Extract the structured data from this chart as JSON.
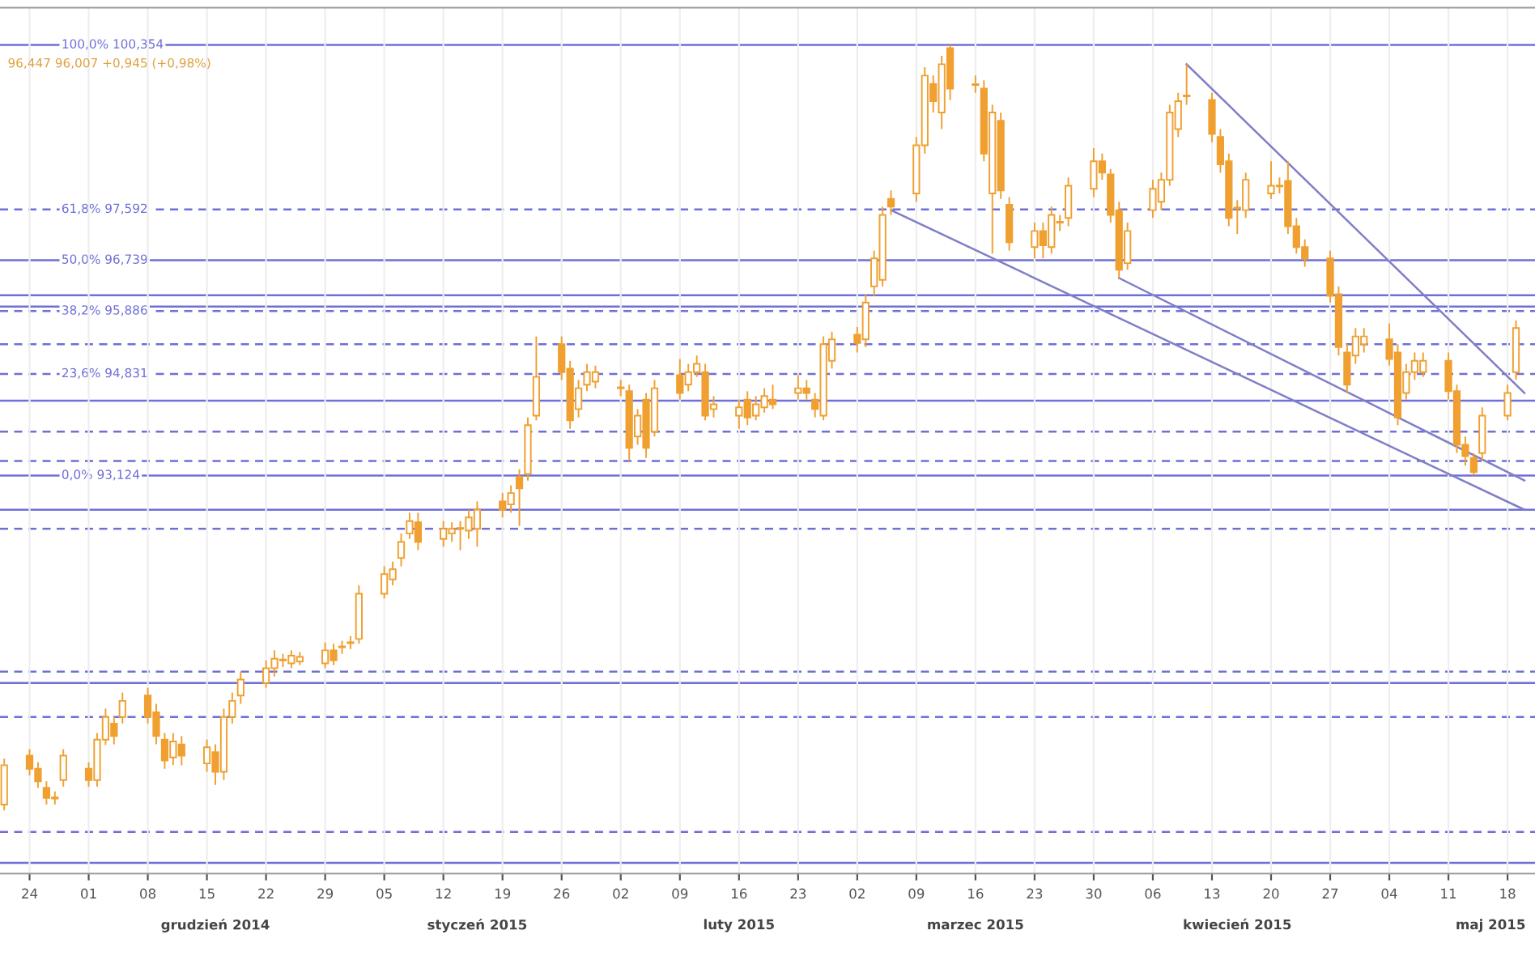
{
  "chart_data": {
    "type": "candlestick",
    "color": "#f0a030",
    "x": [
      "2014-11-21",
      "2014-11-24",
      "2014-11-25",
      "2014-11-26",
      "2014-11-27",
      "2014-11-28",
      "2014-12-01",
      "2014-12-02",
      "2014-12-03",
      "2014-12-04",
      "2014-12-05",
      "2014-12-08",
      "2014-12-09",
      "2014-12-10",
      "2014-12-11",
      "2014-12-12",
      "2014-12-15",
      "2014-12-16",
      "2014-12-17",
      "2014-12-18",
      "2014-12-19",
      "2014-12-22",
      "2014-12-23",
      "2014-12-24",
      "2014-12-25",
      "2014-12-26",
      "2014-12-29",
      "2014-12-30",
      "2014-12-31",
      "2015-01-01",
      "2015-01-02",
      "2015-01-05",
      "2015-01-06",
      "2015-01-07",
      "2015-01-08",
      "2015-01-09",
      "2015-01-12",
      "2015-01-13",
      "2015-01-14",
      "2015-01-15",
      "2015-01-16",
      "2015-01-19",
      "2015-01-20",
      "2015-01-21",
      "2015-01-22",
      "2015-01-23",
      "2015-01-26",
      "2015-01-27",
      "2015-01-28",
      "2015-01-29",
      "2015-01-30",
      "2015-02-02",
      "2015-02-03",
      "2015-02-04",
      "2015-02-05",
      "2015-02-06",
      "2015-02-09",
      "2015-02-10",
      "2015-02-11",
      "2015-02-12",
      "2015-02-13",
      "2015-02-16",
      "2015-02-17",
      "2015-02-18",
      "2015-02-19",
      "2015-02-20",
      "2015-02-23",
      "2015-02-24",
      "2015-02-25",
      "2015-02-26",
      "2015-02-27",
      "2015-03-02",
      "2015-03-03",
      "2015-03-04",
      "2015-03-05",
      "2015-03-06",
      "2015-03-09",
      "2015-03-10",
      "2015-03-11",
      "2015-03-12",
      "2015-03-13",
      "2015-03-16",
      "2015-03-17",
      "2015-03-18",
      "2015-03-19",
      "2015-03-20",
      "2015-03-23",
      "2015-03-24",
      "2015-03-25",
      "2015-03-26",
      "2015-03-27",
      "2015-03-30",
      "2015-03-31",
      "2015-04-01",
      "2015-04-02",
      "2015-04-03",
      "2015-04-06",
      "2015-04-07",
      "2015-04-08",
      "2015-04-09",
      "2015-04-10",
      "2015-04-13",
      "2015-04-14",
      "2015-04-15",
      "2015-04-16",
      "2015-04-17",
      "2015-04-20",
      "2015-04-21",
      "2015-04-22",
      "2015-04-23",
      "2015-04-24",
      "2015-04-27",
      "2015-04-28",
      "2015-04-29",
      "2015-04-30",
      "2015-05-01",
      "2015-05-04",
      "2015-05-05",
      "2015-05-06",
      "2015-05-07",
      "2015-05-08",
      "2015-05-11",
      "2015-05-12",
      "2015-05-13",
      "2015-05-14",
      "2015-05-15",
      "2015-05-18",
      "2015-05-19"
    ],
    "ohlc": [
      [
        87.6,
        88.37,
        87.5,
        88.26
      ],
      [
        88.42,
        88.53,
        88.09,
        88.2
      ],
      [
        88.2,
        88.31,
        87.88,
        87.99
      ],
      [
        87.88,
        87.99,
        87.6,
        87.71
      ],
      [
        87.72,
        87.82,
        87.6,
        87.7
      ],
      [
        88.01,
        88.53,
        87.9,
        88.42
      ],
      [
        88.2,
        88.31,
        87.9,
        88.01
      ],
      [
        88.01,
        88.8,
        87.9,
        88.69
      ],
      [
        88.69,
        89.21,
        88.6,
        89.07
      ],
      [
        88.96,
        89.07,
        88.61,
        88.75
      ],
      [
        89.07,
        89.48,
        88.96,
        89.34
      ],
      [
        89.43,
        89.56,
        88.96,
        89.07
      ],
      [
        89.15,
        89.29,
        88.61,
        88.75
      ],
      [
        88.69,
        88.8,
        88.2,
        88.34
      ],
      [
        88.39,
        88.8,
        88.26,
        88.66
      ],
      [
        88.61,
        88.75,
        88.26,
        88.42
      ],
      [
        88.29,
        88.69,
        88.15,
        88.56
      ],
      [
        88.48,
        88.61,
        87.93,
        88.15
      ],
      [
        88.15,
        89.21,
        88.01,
        89.07
      ],
      [
        89.07,
        89.48,
        88.96,
        89.34
      ],
      [
        89.43,
        89.83,
        89.29,
        89.7
      ],
      [
        89.64,
        90.02,
        89.56,
        89.89
      ],
      [
        89.89,
        90.19,
        89.75,
        90.05
      ],
      [
        90.03,
        90.13,
        89.91,
        90.02
      ],
      [
        89.97,
        90.19,
        89.89,
        90.1
      ],
      [
        90.0,
        90.16,
        89.94,
        90.08
      ],
      [
        89.97,
        90.32,
        89.89,
        90.19
      ],
      [
        90.19,
        90.3,
        89.94,
        90.02
      ],
      [
        90.25,
        90.35,
        90.13,
        90.24
      ],
      [
        90.31,
        90.43,
        90.21,
        90.32
      ],
      [
        90.38,
        91.28,
        90.3,
        91.14
      ],
      [
        91.14,
        91.6,
        91.06,
        91.47
      ],
      [
        91.38,
        91.68,
        91.28,
        91.55
      ],
      [
        91.74,
        92.15,
        91.6,
        92.01
      ],
      [
        92.15,
        92.5,
        92.06,
        92.36
      ],
      [
        92.34,
        92.5,
        91.87,
        92.01
      ],
      [
        92.06,
        92.36,
        91.93,
        92.23
      ],
      [
        92.15,
        92.34,
        92.01,
        92.23
      ],
      [
        92.24,
        92.36,
        91.87,
        92.23
      ],
      [
        92.2,
        92.55,
        92.06,
        92.42
      ],
      [
        92.23,
        92.69,
        91.93,
        92.55
      ],
      [
        92.69,
        92.83,
        92.42,
        92.55
      ],
      [
        92.64,
        92.96,
        92.5,
        92.83
      ],
      [
        93.1,
        93.23,
        92.28,
        92.91
      ],
      [
        93.15,
        94.1,
        93.04,
        93.97
      ],
      [
        94.13,
        95.46,
        94.05,
        94.78
      ],
      [
        95.33,
        95.46,
        94.73,
        94.86
      ],
      [
        94.92,
        95.05,
        93.91,
        94.05
      ],
      [
        94.24,
        94.73,
        94.1,
        94.59
      ],
      [
        94.65,
        95.0,
        94.54,
        94.86
      ],
      [
        94.7,
        94.97,
        94.59,
        94.86
      ],
      [
        94.6,
        94.73,
        94.46,
        94.59
      ],
      [
        94.54,
        94.65,
        93.37,
        93.59
      ],
      [
        93.78,
        94.24,
        93.64,
        94.13
      ],
      [
        94.4,
        94.51,
        93.42,
        93.59
      ],
      [
        93.86,
        94.73,
        93.78,
        94.59
      ],
      [
        94.81,
        95.08,
        94.4,
        94.51
      ],
      [
        94.65,
        95.0,
        94.54,
        94.86
      ],
      [
        94.86,
        95.14,
        94.78,
        95.0
      ],
      [
        94.86,
        95.0,
        94.05,
        94.13
      ],
      [
        94.24,
        94.46,
        94.1,
        94.32
      ],
      [
        94.13,
        94.4,
        93.91,
        94.27
      ],
      [
        94.4,
        94.54,
        93.97,
        94.1
      ],
      [
        94.13,
        94.46,
        94.05,
        94.32
      ],
      [
        94.27,
        94.59,
        94.18,
        94.46
      ],
      [
        94.4,
        94.65,
        94.24,
        94.32
      ],
      [
        94.51,
        94.81,
        94.4,
        94.59
      ],
      [
        94.59,
        94.73,
        94.4,
        94.51
      ],
      [
        94.4,
        94.51,
        94.1,
        94.24
      ],
      [
        94.13,
        95.46,
        94.05,
        95.33
      ],
      [
        95.05,
        95.54,
        94.92,
        95.41
      ],
      [
        95.49,
        95.62,
        95.19,
        95.35
      ],
      [
        95.41,
        96.17,
        95.28,
        96.03
      ],
      [
        96.3,
        96.9,
        96.14,
        96.77
      ],
      [
        96.41,
        97.64,
        96.3,
        97.5
      ],
      [
        97.77,
        97.91,
        97.5,
        97.64
      ],
      [
        97.86,
        98.81,
        97.72,
        98.67
      ],
      [
        98.67,
        99.98,
        98.53,
        99.84
      ],
      [
        99.7,
        99.84,
        99.22,
        99.41
      ],
      [
        99.22,
        100.17,
        98.94,
        100.03
      ],
      [
        100.3,
        100.354,
        99.43,
        99.62
      ],
      [
        99.69,
        99.84,
        99.55,
        99.68
      ],
      [
        99.62,
        99.76,
        98.4,
        98.53
      ],
      [
        97.86,
        99.35,
        96.85,
        99.22
      ],
      [
        99.08,
        99.22,
        97.77,
        97.91
      ],
      [
        97.67,
        97.8,
        96.9,
        97.04
      ],
      [
        96.96,
        97.37,
        96.77,
        97.23
      ],
      [
        97.23,
        97.37,
        96.77,
        96.99
      ],
      [
        96.96,
        97.64,
        96.85,
        97.5
      ],
      [
        97.38,
        97.5,
        97.23,
        97.37
      ],
      [
        97.45,
        98.13,
        97.31,
        97.99
      ],
      [
        97.94,
        98.62,
        97.8,
        98.4
      ],
      [
        98.4,
        98.53,
        98.09,
        98.21
      ],
      [
        98.18,
        98.27,
        97.37,
        97.5
      ],
      [
        97.58,
        97.72,
        96.44,
        96.58
      ],
      [
        96.69,
        97.37,
        96.58,
        97.23
      ],
      [
        97.58,
        98.09,
        97.45,
        97.94
      ],
      [
        97.72,
        98.21,
        97.58,
        98.09
      ],
      [
        98.09,
        99.35,
        97.99,
        99.22
      ],
      [
        98.94,
        99.55,
        98.81,
        99.41
      ],
      [
        99.5,
        100.03,
        99.35,
        99.49
      ],
      [
        99.43,
        99.55,
        98.72,
        98.86
      ],
      [
        98.81,
        98.94,
        98.21,
        98.35
      ],
      [
        98.4,
        98.53,
        97.31,
        97.45
      ],
      [
        97.62,
        97.75,
        97.18,
        97.61
      ],
      [
        97.58,
        98.21,
        97.45,
        98.09
      ],
      [
        97.86,
        98.4,
        97.77,
        97.99
      ],
      [
        97.99,
        98.13,
        97.86,
        97.98
      ],
      [
        98.07,
        98.4,
        97.18,
        97.31
      ],
      [
        97.31,
        97.45,
        96.85,
        96.96
      ],
      [
        96.96,
        97.09,
        96.63,
        96.77
      ],
      [
        96.77,
        96.9,
        96.03,
        96.14
      ],
      [
        96.17,
        96.3,
        95.14,
        95.28
      ],
      [
        95.19,
        95.33,
        94.51,
        94.65
      ],
      [
        95.14,
        95.6,
        95.0,
        95.46
      ],
      [
        95.33,
        95.6,
        95.19,
        95.46
      ],
      [
        95.41,
        95.68,
        94.97,
        95.08
      ],
      [
        95.19,
        95.33,
        93.97,
        94.1
      ],
      [
        94.51,
        95.0,
        94.4,
        94.86
      ],
      [
        94.86,
        95.19,
        94.73,
        95.05
      ],
      [
        94.86,
        95.19,
        94.78,
        95.05
      ],
      [
        95.05,
        95.19,
        94.4,
        94.54
      ],
      [
        94.54,
        94.65,
        93.5,
        93.64
      ],
      [
        93.64,
        93.78,
        93.29,
        93.45
      ],
      [
        93.42,
        93.5,
        93.124,
        93.18
      ],
      [
        93.5,
        94.27,
        93.37,
        94.13
      ],
      [
        94.13,
        94.65,
        94.05,
        94.51
      ],
      [
        94.86,
        95.73,
        94.73,
        95.6
      ]
    ],
    "series": [
      {
        "type": "line",
        "color": "#7f7fc8",
        "x": [
          "2015-03-06",
          "2015-05-20"
        ],
        "values": [
          97.58,
          92.55
        ]
      },
      {
        "type": "line",
        "color": "#7f7fc8",
        "x": [
          "2015-04-02",
          "2015-05-20"
        ],
        "values": [
          96.44,
          93.04
        ]
      },
      {
        "type": "line",
        "color": "#7f7fc8",
        "x": [
          "2015-04-10",
          "2015-05-20"
        ],
        "values": [
          100.03,
          94.51
        ]
      }
    ],
    "ref_lines": [
      {
        "axis": "y",
        "value": 100.354,
        "label": "100,0% 100,354",
        "color": "#6f6fd8",
        "line_style": "solid"
      },
      {
        "axis": "y",
        "value": 97.592,
        "label": "61,8% 97,592",
        "color": "#6f6fd8",
        "line_style": "dashed"
      },
      {
        "axis": "y",
        "value": 96.739,
        "label": "50,0% 96,739",
        "color": "#6f6fd8",
        "line_style": "solid"
      },
      {
        "axis": "y",
        "value": 96.15,
        "color": "#6f6fd8",
        "line_style": "solid"
      },
      {
        "axis": "y",
        "value": 95.96,
        "color": "#6f6fd8",
        "line_style": "solid"
      },
      {
        "axis": "y",
        "value": 95.886,
        "label": "38,2% 95,886",
        "color": "#6f6fd8",
        "line_style": "dashed"
      },
      {
        "axis": "y",
        "value": 95.33,
        "color": "#6f6fd8",
        "line_style": "dashed"
      },
      {
        "axis": "y",
        "value": 94.831,
        "label": "23,6% 94,831",
        "color": "#6f6fd8",
        "line_style": "dashed"
      },
      {
        "axis": "y",
        "value": 94.38,
        "color": "#6f6fd8",
        "line_style": "solid"
      },
      {
        "axis": "y",
        "value": 93.86,
        "color": "#6f6fd8",
        "line_style": "dashed"
      },
      {
        "axis": "y",
        "value": 93.37,
        "color": "#6f6fd8",
        "line_style": "dashed"
      },
      {
        "axis": "y",
        "value": 93.124,
        "label": "0,0% 93,124",
        "color": "#6f6fd8",
        "line_style": "solid"
      },
      {
        "axis": "y",
        "value": 92.55,
        "color": "#6f6fd8",
        "line_style": "solid"
      },
      {
        "axis": "y",
        "value": 92.23,
        "color": "#6f6fd8",
        "line_style": "dashed"
      },
      {
        "axis": "y",
        "value": 89.83,
        "color": "#6f6fd8",
        "line_style": "dashed"
      },
      {
        "axis": "y",
        "value": 89.64,
        "color": "#6f6fd8",
        "line_style": "solid"
      },
      {
        "axis": "y",
        "value": 89.07,
        "color": "#6f6fd8",
        "line_style": "dashed"
      },
      {
        "axis": "y",
        "value": 87.14,
        "color": "#6f6fd8",
        "line_style": "dashed"
      },
      {
        "axis": "y",
        "value": 86.62,
        "color": "#6f6fd8",
        "line_style": "solid"
      }
    ],
    "xlim": [
      "2014-11-20T12:00",
      "2015-05-21T06:00"
    ],
    "grid": "x",
    "ylim": [
      86.44,
      100.98
    ],
    "xticks": [
      {
        "value": "2014-11-24",
        "label": "24"
      },
      {
        "value": "2014-12-01",
        "label": "01"
      },
      {
        "value": "2014-12-08",
        "label": "08"
      },
      {
        "value": "2014-12-15",
        "label": "15"
      },
      {
        "value": "2014-12-22",
        "label": "22"
      },
      {
        "value": "2014-12-29",
        "label": "29"
      },
      {
        "value": "2015-01-05",
        "label": "05"
      },
      {
        "value": "2015-01-12",
        "label": "12"
      },
      {
        "value": "2015-01-19",
        "label": "19"
      },
      {
        "value": "2015-01-26",
        "label": "26"
      },
      {
        "value": "2015-02-02",
        "label": "02"
      },
      {
        "value": "2015-02-09",
        "label": "09"
      },
      {
        "value": "2015-02-16",
        "label": "16"
      },
      {
        "value": "2015-02-23",
        "label": "23"
      },
      {
        "value": "2015-03-02",
        "label": "02"
      },
      {
        "value": "2015-03-09",
        "label": "09"
      },
      {
        "value": "2015-03-16",
        "label": "16"
      },
      {
        "value": "2015-03-23",
        "label": "23"
      },
      {
        "value": "2015-03-30",
        "label": "30"
      },
      {
        "value": "2015-04-06",
        "label": "06"
      },
      {
        "value": "2015-04-13",
        "label": "13"
      },
      {
        "value": "2015-04-20",
        "label": "20"
      },
      {
        "value": "2015-04-27",
        "label": "27"
      },
      {
        "value": "2015-05-04",
        "label": "04"
      },
      {
        "value": "2015-05-11",
        "label": "11"
      },
      {
        "value": "2015-05-18",
        "label": "18"
      }
    ],
    "tick_labels": "x",
    "annotations": [
      "96,447 96,007 +0,945 (+0,98%)",
      "grudzień 2014",
      "styczeń 2015",
      "luty 2015",
      "marzec 2015",
      "kwiecień 2015",
      "maj 2015"
    ]
  }
}
